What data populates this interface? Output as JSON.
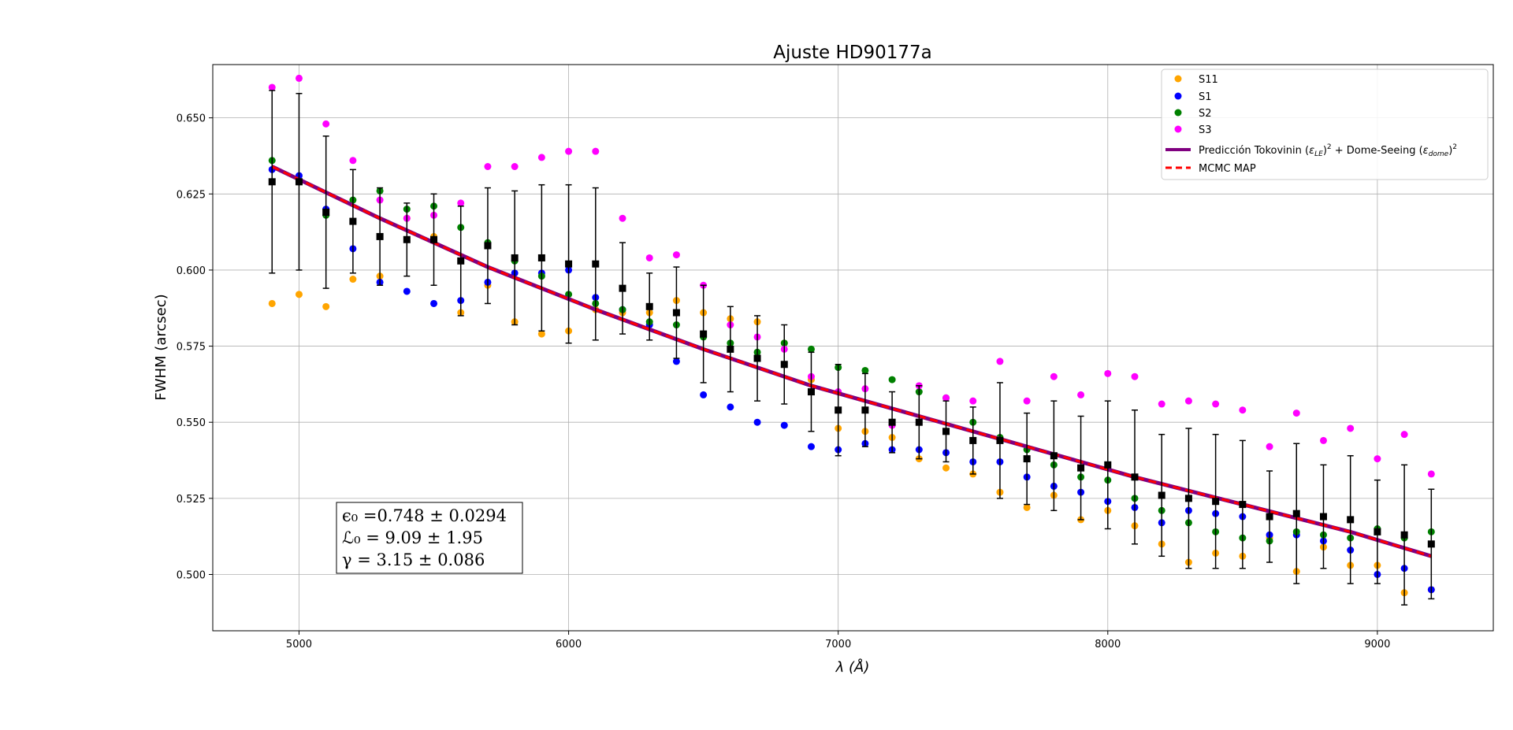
{
  "chart_data": {
    "type": "scatter",
    "title": "Ajuste HD90177a",
    "xlabel": "λ (Å)",
    "ylabel": "FWHM (arcsec)",
    "xlim": [
      4680,
      9430
    ],
    "ylim": [
      0.4815,
      0.6675
    ],
    "xticks": [
      5000,
      6000,
      7000,
      8000,
      9000
    ],
    "yticks": [
      0.5,
      0.525,
      0.55,
      0.575,
      0.6,
      0.625,
      0.65
    ],
    "ytick_labels": [
      "0.500",
      "0.525",
      "0.550",
      "0.575",
      "0.600",
      "0.625",
      "0.650"
    ],
    "grid": true,
    "legend_position": "top-right",
    "x": [
      4900,
      5000,
      5100,
      5200,
      5300,
      5400,
      5500,
      5600,
      5700,
      5800,
      5900,
      6000,
      6100,
      6200,
      6300,
      6400,
      6500,
      6600,
      6700,
      6800,
      6900,
      7000,
      7100,
      7200,
      7300,
      7400,
      7500,
      7600,
      7700,
      7800,
      7900,
      8000,
      8100,
      8200,
      8300,
      8400,
      8500,
      8600,
      8700,
      8800,
      8900,
      9000,
      9100,
      9200
    ],
    "series": [
      {
        "name": "S11",
        "kind": "scatter",
        "color": "#ffa500",
        "values": [
          0.589,
          0.592,
          0.588,
          0.597,
          0.598,
          0.617,
          0.611,
          0.586,
          0.595,
          0.583,
          0.579,
          0.58,
          0.587,
          0.586,
          0.586,
          0.59,
          0.586,
          0.584,
          0.583,
          0.576,
          0.564,
          0.548,
          0.547,
          0.545,
          0.538,
          0.535,
          0.533,
          0.527,
          0.522,
          0.526,
          0.518,
          0.521,
          0.516,
          0.51,
          0.504,
          0.507,
          0.506,
          0.512,
          0.501,
          0.509,
          0.503,
          0.503,
          0.494,
          0.495
        ]
      },
      {
        "name": "S1",
        "kind": "scatter",
        "color": "#0000ff",
        "values": [
          0.633,
          0.631,
          0.62,
          0.607,
          0.596,
          0.593,
          0.589,
          0.59,
          0.596,
          0.599,
          0.599,
          0.6,
          0.591,
          0.587,
          0.582,
          0.57,
          0.559,
          0.555,
          0.55,
          0.549,
          0.542,
          0.541,
          0.543,
          0.541,
          0.541,
          0.54,
          0.537,
          0.537,
          0.532,
          0.529,
          0.527,
          0.524,
          0.522,
          0.517,
          0.521,
          0.52,
          0.519,
          0.513,
          0.513,
          0.511,
          0.508,
          0.5,
          0.502,
          0.495
        ]
      },
      {
        "name": "S2",
        "kind": "scatter",
        "color": "#008000",
        "values": [
          0.636,
          0.629,
          0.618,
          0.623,
          0.626,
          0.62,
          0.621,
          0.614,
          0.609,
          0.603,
          0.598,
          0.592,
          0.589,
          0.587,
          0.583,
          0.582,
          0.578,
          0.576,
          0.573,
          0.576,
          0.574,
          0.568,
          0.567,
          0.564,
          0.56,
          0.558,
          0.55,
          0.545,
          0.541,
          0.536,
          0.532,
          0.531,
          0.525,
          0.521,
          0.517,
          0.514,
          0.512,
          0.511,
          0.514,
          0.513,
          0.512,
          0.515,
          0.512,
          0.514
        ]
      },
      {
        "name": "S3",
        "kind": "scatter",
        "color": "#ff00ff",
        "values": [
          0.66,
          0.663,
          0.648,
          0.636,
          0.623,
          0.617,
          0.618,
          0.622,
          0.634,
          0.634,
          0.637,
          0.639,
          0.639,
          0.617,
          0.604,
          0.605,
          0.595,
          0.582,
          0.578,
          0.574,
          0.565,
          0.56,
          0.561,
          0.549,
          0.562,
          0.558,
          0.557,
          0.57,
          0.557,
          0.565,
          0.559,
          0.566,
          0.565,
          0.556,
          0.557,
          0.556,
          0.554,
          0.542,
          0.553,
          0.544,
          0.548,
          0.538,
          0.546,
          0.533
        ]
      },
      {
        "name": "",
        "kind": "errorbar",
        "color": "#000000",
        "values": [
          0.629,
          0.629,
          0.619,
          0.616,
          0.611,
          0.61,
          0.61,
          0.603,
          0.608,
          0.604,
          0.604,
          0.602,
          0.602,
          0.594,
          0.588,
          0.586,
          0.579,
          0.574,
          0.571,
          0.569,
          0.56,
          0.554,
          0.554,
          0.55,
          0.55,
          0.547,
          0.544,
          0.544,
          0.538,
          0.539,
          0.535,
          0.536,
          0.532,
          0.526,
          0.525,
          0.524,
          0.523,
          0.519,
          0.52,
          0.519,
          0.518,
          0.514,
          0.513,
          0.51
        ],
        "errors": [
          0.03,
          0.029,
          0.025,
          0.017,
          0.016,
          0.012,
          0.015,
          0.018,
          0.019,
          0.022,
          0.024,
          0.026,
          0.025,
          0.015,
          0.011,
          0.015,
          0.016,
          0.014,
          0.014,
          0.013,
          0.013,
          0.015,
          0.012,
          0.01,
          0.012,
          0.01,
          0.011,
          0.019,
          0.015,
          0.018,
          0.017,
          0.021,
          0.022,
          0.02,
          0.023,
          0.022,
          0.021,
          0.015,
          0.023,
          0.017,
          0.021,
          0.017,
          0.023,
          0.018
        ]
      }
    ],
    "lines": [
      {
        "name": "Predicción Tokovinin (ε_LE)² + Dome-Seeing (ε_dome)²",
        "style": "solid",
        "color": "#800080",
        "x": [
          4900,
          5300,
          5700,
          6100,
          6500,
          6900,
          7300,
          7700,
          8100,
          8500,
          8900,
          9200
        ],
        "values": [
          0.634,
          0.617,
          0.601,
          0.587,
          0.574,
          0.562,
          0.552,
          0.542,
          0.532,
          0.523,
          0.514,
          0.506
        ]
      },
      {
        "name": "MCMC MAP",
        "style": "dashed",
        "color": "#ff0000",
        "x": [
          4900,
          5300,
          5700,
          6100,
          6500,
          6900,
          7300,
          7700,
          8100,
          8500,
          8900,
          9200
        ],
        "values": [
          0.634,
          0.617,
          0.601,
          0.587,
          0.574,
          0.562,
          0.552,
          0.542,
          0.532,
          0.523,
          0.514,
          0.506
        ]
      }
    ],
    "annotation": {
      "lines": [
        "ϵ₀ =0.748 ± 0.0294",
        "ℒ₀ = 9.09 ± 1.95",
        "γ = 3.15 ± 0.086"
      ]
    },
    "legend": [
      {
        "label": "S11",
        "color": "#ffa500",
        "marker": "circle"
      },
      {
        "label": "S1",
        "color": "#0000ff",
        "marker": "circle"
      },
      {
        "label": "S2",
        "color": "#008000",
        "marker": "circle"
      },
      {
        "label": "S3",
        "color": "#ff00ff",
        "marker": "circle"
      },
      {
        "label": "Predicción Tokovinin (ε_LE)² + Dome-Seeing (ε_dome)²",
        "color": "#800080",
        "marker": "line"
      },
      {
        "label": "MCMC MAP",
        "color": "#ff0000",
        "marker": "dashed"
      }
    ]
  }
}
